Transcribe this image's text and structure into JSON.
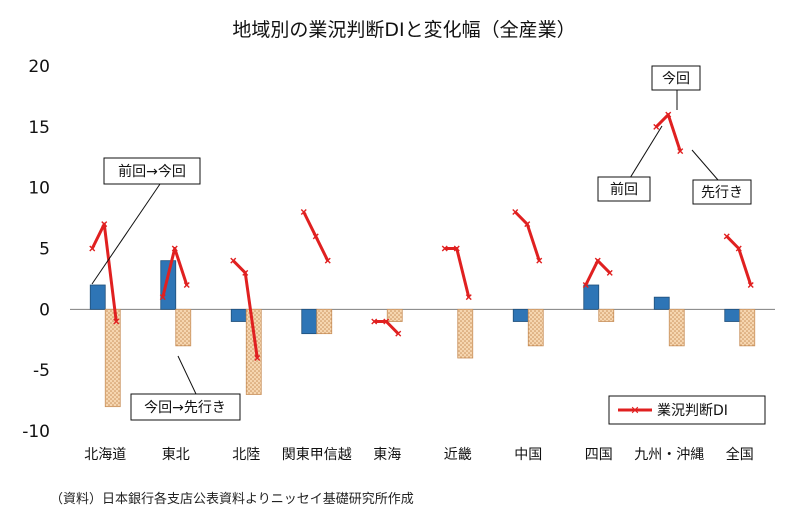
{
  "chart_data": {
    "type": "bar",
    "title": "地域別の業況判断DIと変化幅（全産業）",
    "source": "（資料）日本銀行各支店公表資料よりニッセイ基礎研究所作成",
    "ylim": [
      -10,
      20
    ],
    "yticks": [
      "20",
      "15",
      "10",
      "5",
      "0",
      "-5",
      "-10"
    ],
    "categories": [
      "北海道",
      "東北",
      "北陸",
      "関東甲信越",
      "東海",
      "近畿",
      "中国",
      "四国",
      "九州・沖縄",
      "全国"
    ],
    "series": [
      {
        "name": "",
        "kind": "bar",
        "color": "#2e75b6",
        "values": [
          2,
          4,
          -1,
          -2,
          0,
          0,
          -1,
          2,
          1,
          -1
        ]
      },
      {
        "name": "",
        "kind": "bar",
        "color": "#f4cfa4",
        "hatch": true,
        "values": [
          -8,
          -3,
          -7,
          -2,
          -1,
          -4,
          -3,
          -1,
          -3,
          -3
        ]
      },
      {
        "name": "業況判断DI",
        "kind": "line",
        "color": "#e02020",
        "points": [
          [
            5,
            7,
            -1
          ],
          [
            1,
            5,
            2
          ],
          [
            4,
            3,
            -4
          ],
          [
            8,
            6,
            4
          ],
          [
            -1,
            -1,
            -2
          ],
          [
            5,
            5,
            1
          ],
          [
            8,
            7,
            4
          ],
          [
            2,
            4,
            3
          ],
          [
            15,
            16,
            13
          ],
          [
            6,
            5,
            2
          ]
        ]
      }
    ],
    "annotations": {
      "prev_to_now": "前回→今回",
      "now_to_ahead": "今回→先行き",
      "now": "今回",
      "prev": "前回",
      "ahead": "先行き"
    },
    "legend": {
      "label": "業況判断DI",
      "position": "bottom-right"
    }
  }
}
